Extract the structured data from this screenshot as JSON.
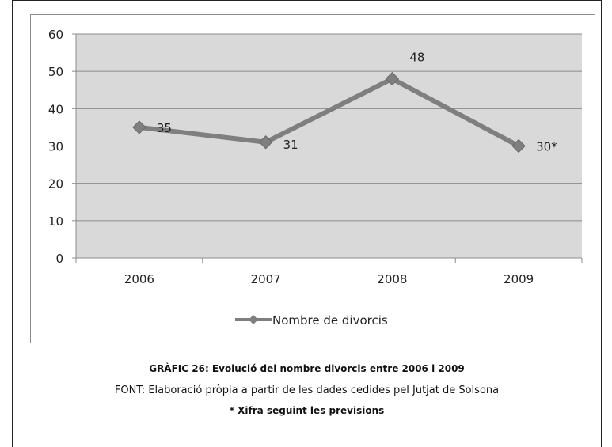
{
  "chart_data": {
    "type": "line",
    "categories": [
      "2006",
      "2007",
      "2008",
      "2009"
    ],
    "series": [
      {
        "name": "Nombre de divorcis",
        "values": [
          35,
          31,
          48,
          30
        ],
        "color": "#7f7f7f"
      }
    ],
    "data_labels": [
      "35",
      "31",
      "48",
      "30*"
    ],
    "y_ticks": [
      "0",
      "10",
      "20",
      "30",
      "40",
      "50",
      "60"
    ],
    "ylim": [
      0,
      60
    ],
    "grid": true,
    "plot_background": "#d9d9d9",
    "legend_position": "bottom"
  },
  "caption": {
    "title": "GRÀFIC 26: Evolució del nombre divorcis entre 2006 i 2009",
    "source": "FONT: Elaboració pròpia a partir de les dades cedides pel Jutjat de Solsona",
    "note": "* Xifra seguint les previsions"
  }
}
